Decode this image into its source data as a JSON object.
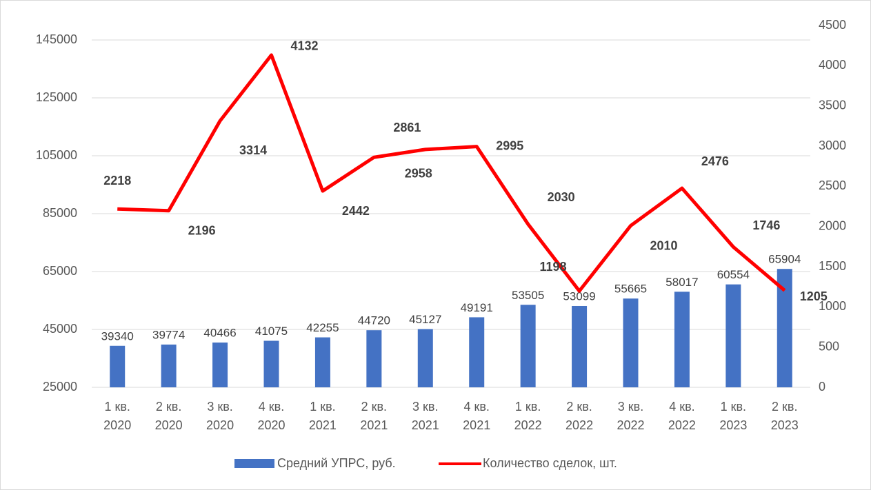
{
  "chart_data": {
    "type": "bar-line",
    "categories": [
      "1 кв. 2020",
      "2 кв. 2020",
      "3 кв. 2020",
      "4 кв. 2020",
      "1 кв. 2021",
      "2 кв. 2021",
      "3 кв. 2021",
      "4 кв. 2021",
      "1 кв. 2022",
      "2 кв. 2022",
      "3 кв. 2022",
      "4 кв. 2022",
      "1 кв. 2023",
      "2 кв. 2023"
    ],
    "series": [
      {
        "name": "Средний УПРС, руб.",
        "type": "bar",
        "color": "#4472c4",
        "axis": "y",
        "values": [
          39340,
          39774,
          40466,
          41075,
          42255,
          44720,
          45127,
          49191,
          53505,
          53099,
          55665,
          58017,
          60554,
          65904
        ]
      },
      {
        "name": "Количество сделок, шт.",
        "type": "line",
        "color": "#ff0000",
        "axis": "y2",
        "values": [
          2218,
          2196,
          3314,
          4132,
          2442,
          2861,
          2958,
          2995,
          2030,
          1198,
          2010,
          2476,
          1746,
          1205
        ]
      }
    ],
    "ylim": [
      25000,
      150000
    ],
    "yticks": [
      25000,
      45000,
      65000,
      85000,
      105000,
      125000,
      145000
    ],
    "y2lim": [
      0,
      4500
    ],
    "y2ticks": [
      0,
      500,
      1000,
      1500,
      2000,
      2500,
      3000,
      3500,
      4000,
      4500
    ],
    "grid": true
  }
}
